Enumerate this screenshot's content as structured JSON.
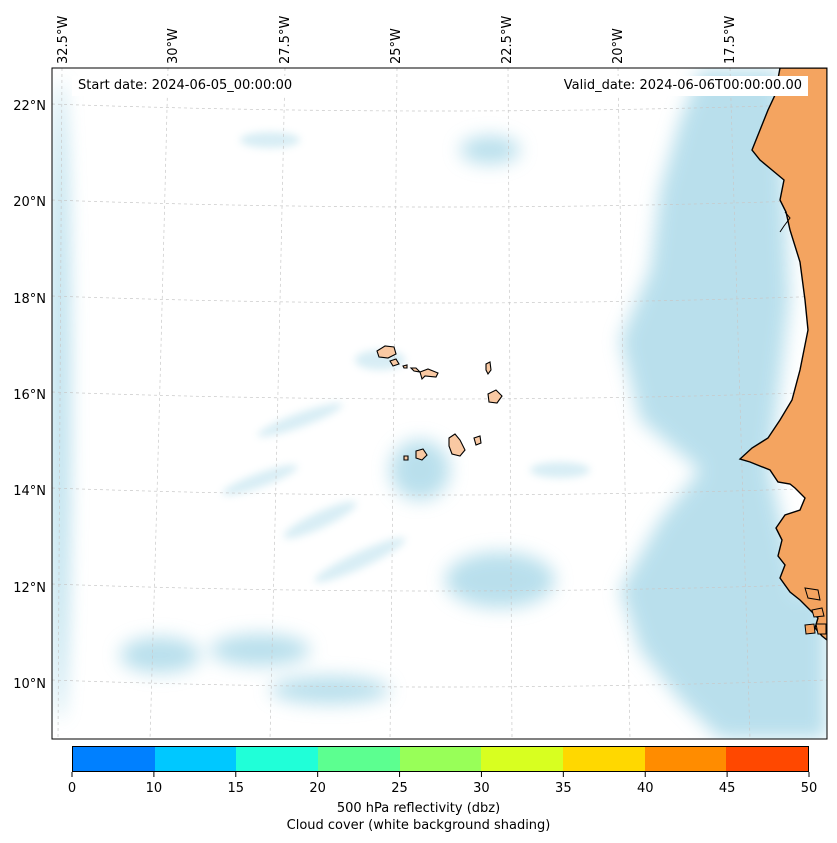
{
  "map": {
    "start_label": "Start date: 2024-06-05_00:00:00",
    "valid_label": "Valid_date: 2024-06-06T00:00:00.00",
    "lon_labels": [
      "32.5°W",
      "30°W",
      "27.5°W",
      "25°W",
      "22.5°W",
      "20°W",
      "17.5°W"
    ],
    "lat_labels": [
      "22°N",
      "20°N",
      "18°N",
      "16°N",
      "14°N",
      "12°N",
      "10°N"
    ],
    "colors": {
      "land": "#f4a460",
      "island_fill": "#f9c9a3",
      "cloud": "#a8d8e8",
      "coastline": "#000000",
      "gridline": "#c8c8c8"
    }
  },
  "colorbar": {
    "ticks": [
      "0",
      "10",
      "15",
      "20",
      "25",
      "30",
      "35",
      "40",
      "45",
      "50"
    ],
    "colors": [
      "#0080ff",
      "#00c8ff",
      "#20ffd8",
      "#5cff90",
      "#98ff58",
      "#d8ff20",
      "#ffd800",
      "#ff8c00",
      "#ff4800"
    ],
    "label": "500 hPa reflectivity (dbz)",
    "sublabel": "Cloud cover (white background shading)"
  }
}
